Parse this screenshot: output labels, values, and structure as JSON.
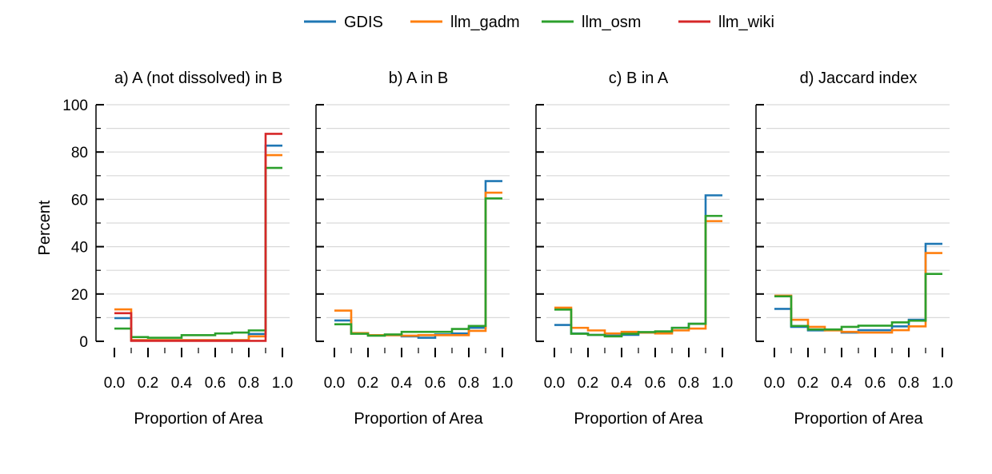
{
  "chart_data": {
    "type": "line",
    "drawstyle": "steps (histogram, bin width 0.1)",
    "legend": {
      "placement": "top-center",
      "entries": [
        "GDIS",
        "llm_gadm",
        "llm_osm",
        "llm_wiki"
      ]
    },
    "colors": {
      "GDIS": "#1f77b4",
      "llm_gadm": "#ff7f0e",
      "llm_osm": "#2ca02c",
      "llm_wiki": "#d62728"
    },
    "shared_ylabel": "Percent",
    "ylim": [
      0,
      100
    ],
    "yticks": [
      "0",
      "20",
      "40",
      "60",
      "80",
      "100"
    ],
    "xlim": [
      0,
      1
    ],
    "xticks": [
      "0.0",
      "0.2",
      "0.4",
      "0.6",
      "0.8",
      "1.0"
    ],
    "grid": "horizontal",
    "bin_edges": [
      0.0,
      0.1,
      0.2,
      0.3,
      0.4,
      0.5,
      0.6,
      0.7,
      0.8,
      0.9,
      1.0
    ],
    "panels": [
      {
        "title": "a) A (not dissolved) in B",
        "xlabel": "Proportion of Area",
        "series": [
          {
            "name": "GDIS",
            "values": [
              9.8,
              0.5,
              0.5,
              0.5,
              0.5,
              0.5,
              0.5,
              0.5,
              3.1,
              82.7
            ]
          },
          {
            "name": "llm_gadm",
            "values": [
              13.5,
              0.5,
              0.5,
              0.5,
              0.5,
              0.5,
              0.5,
              0.5,
              2.1,
              78.7
            ]
          },
          {
            "name": "llm_osm",
            "values": [
              5.4,
              1.8,
              1.5,
              1.5,
              2.6,
              2.6,
              3.3,
              3.7,
              4.6,
              73.3
            ]
          },
          {
            "name": "llm_wiki",
            "values": [
              11.9,
              0.2,
              0.2,
              0.2,
              0.2,
              0.2,
              0.2,
              0.2,
              0.2,
              87.7
            ]
          }
        ]
      },
      {
        "title": "b) A in B",
        "xlabel": "Proportion of Area",
        "series": [
          {
            "name": "GDIS",
            "values": [
              8.8,
              3.3,
              2.6,
              2.6,
              2.1,
              1.5,
              2.9,
              3.3,
              5.7,
              67.7
            ]
          },
          {
            "name": "llm_gadm",
            "values": [
              13.0,
              3.5,
              2.6,
              2.6,
              2.4,
              2.6,
              2.6,
              2.6,
              4.4,
              62.8
            ]
          },
          {
            "name": "llm_osm",
            "values": [
              7.2,
              3.2,
              2.4,
              2.9,
              4.0,
              4.0,
              4.0,
              5.2,
              6.5,
              60.4
            ]
          }
        ]
      },
      {
        "title": "c) B in A",
        "xlabel": "Proportion of Area",
        "series": [
          {
            "name": "GDIS",
            "values": [
              6.9,
              3.3,
              2.7,
              2.4,
              2.7,
              3.7,
              3.9,
              5.7,
              7.4,
              61.7
            ]
          },
          {
            "name": "llm_gadm",
            "values": [
              14.2,
              5.7,
              4.6,
              3.3,
              4.0,
              3.7,
              3.3,
              4.6,
              5.4,
              50.8
            ]
          },
          {
            "name": "llm_osm",
            "values": [
              13.4,
              3.2,
              2.7,
              2.1,
              3.2,
              3.9,
              4.2,
              5.7,
              7.4,
              53.0
            ]
          }
        ]
      },
      {
        "title": "d) Jaccard index",
        "xlabel": "Proportion of Area",
        "series": [
          {
            "name": "GDIS",
            "values": [
              13.7,
              6.1,
              4.6,
              4.7,
              3.7,
              4.7,
              4.7,
              6.3,
              9.1,
              41.2
            ]
          },
          {
            "name": "llm_gadm",
            "values": [
              19.3,
              9.1,
              6.1,
              4.6,
              4.0,
              3.7,
              3.7,
              4.7,
              6.3,
              37.3
            ]
          },
          {
            "name": "llm_osm",
            "values": [
              19.0,
              6.5,
              5.0,
              5.0,
              6.1,
              6.6,
              6.6,
              8.0,
              8.7,
              28.5
            ]
          }
        ]
      }
    ]
  }
}
